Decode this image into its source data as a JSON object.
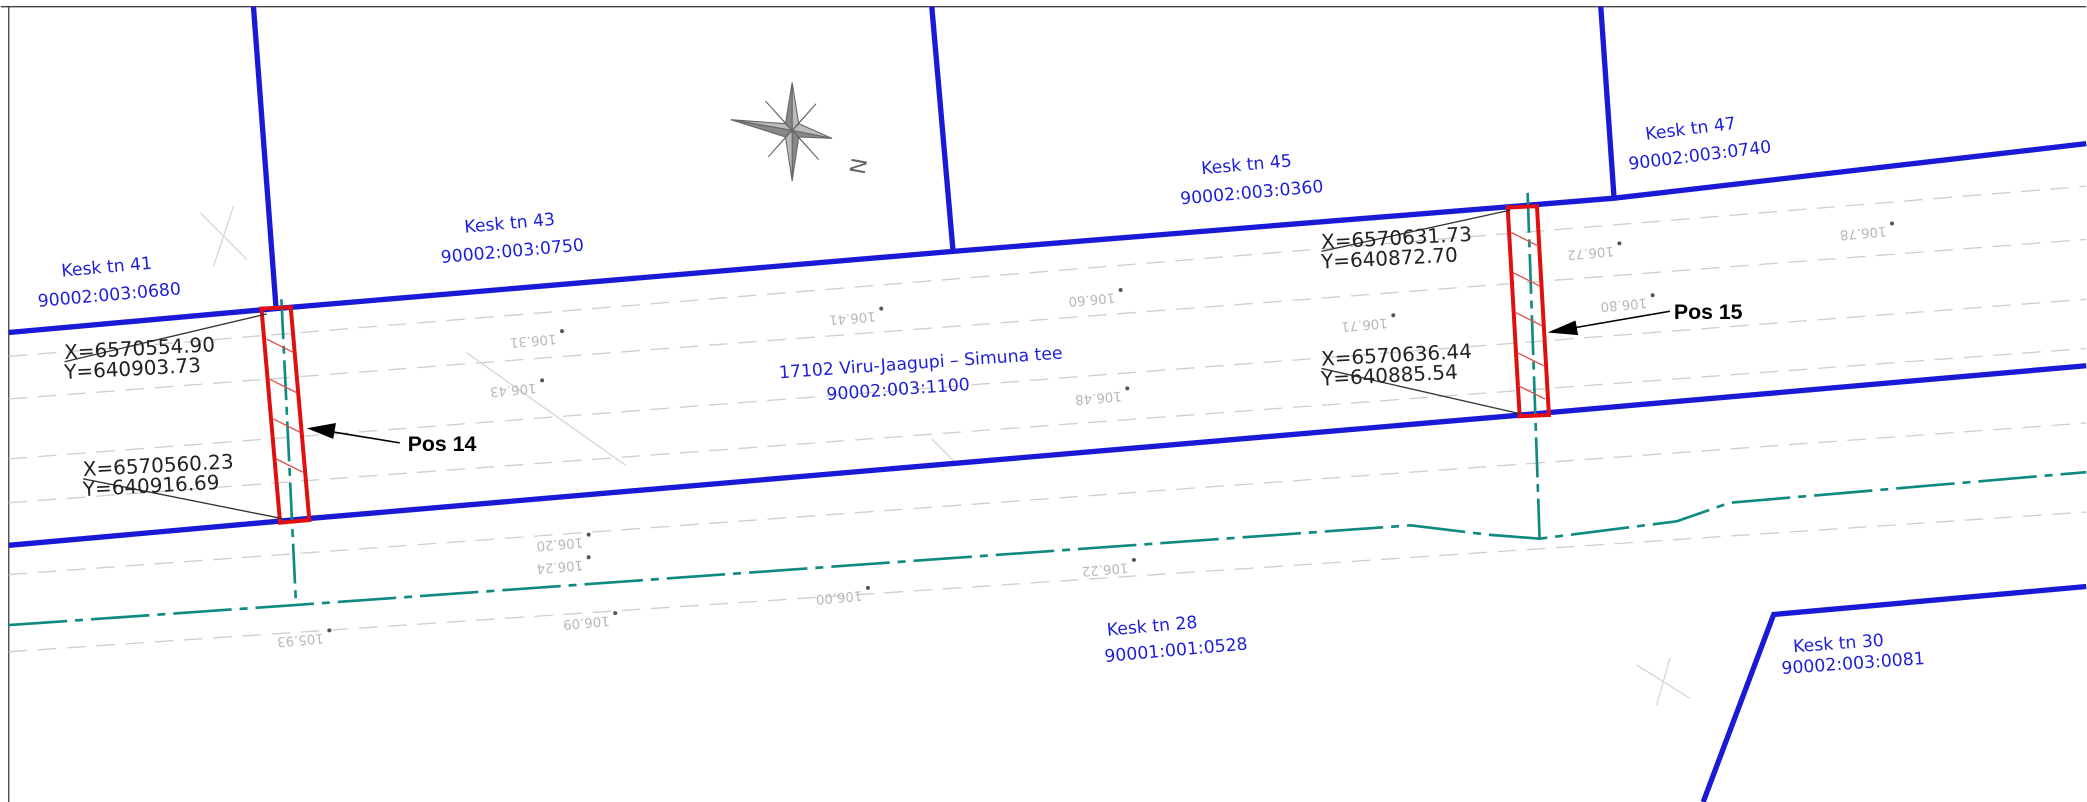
{
  "parcels": [
    {
      "address": "Kesk tn 41",
      "id": "90002:003:0680"
    },
    {
      "address": "Kesk tn 43",
      "id": "90002:003:0750"
    },
    {
      "address": "Kesk tn 45",
      "id": "90002:003:0360"
    },
    {
      "address": "Kesk tn 47",
      "id": "90002:003:0740"
    },
    {
      "address": "Kesk tn 28",
      "id": "90001:001:0528"
    },
    {
      "address": "Kesk tn 30",
      "id": "90002:003:0081"
    }
  ],
  "road": {
    "name": "17102 Viru-Jaagupi – Simuna tee",
    "id": "90002:003:1100"
  },
  "north": "N",
  "positions": [
    {
      "label": "Pos 14",
      "coords": [
        {
          "x": "X=6570554.90",
          "y": "Y=640903.73"
        },
        {
          "x": "X=6570560.23",
          "y": "Y=640916.69"
        }
      ]
    },
    {
      "label": "Pos 15",
      "coords": [
        {
          "x": "X=6570631.73",
          "y": "Y=640872.70"
        },
        {
          "x": "X=6570636.44",
          "y": "Y=640885.54"
        }
      ]
    }
  ],
  "elevations": [
    "106.72",
    "106.78",
    "106.80",
    "106.71",
    "106.60",
    "106.48",
    "106.41",
    "106.43",
    "106.31",
    "106.22",
    "106.00",
    "106.24",
    "106.20",
    "106.09",
    "105.93"
  ]
}
